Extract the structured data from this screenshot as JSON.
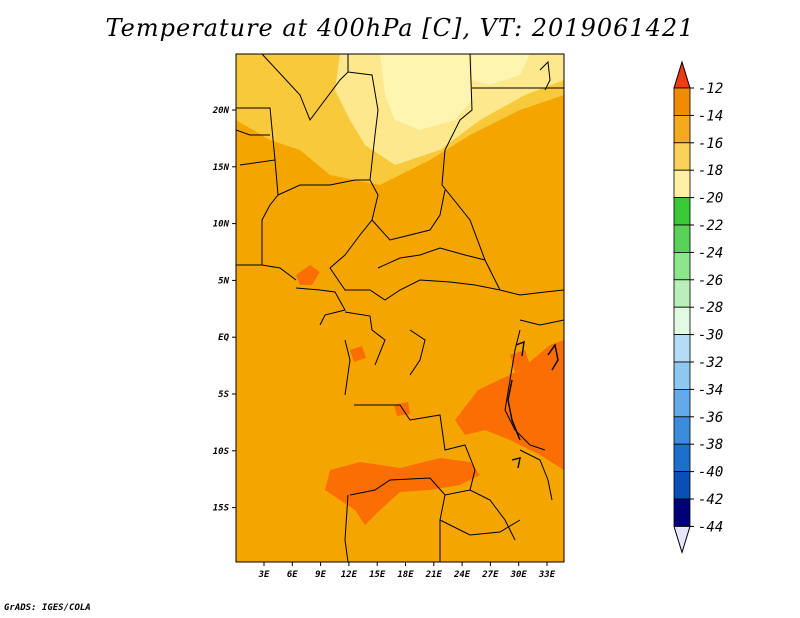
{
  "title": "Temperature at 400hPa [C], VT: 2019061421",
  "footer": "GrADS: IGES/COLA",
  "map": {
    "lon_labels": [
      "3E",
      "6E",
      "9E",
      "12E",
      "15E",
      "18E",
      "21E",
      "24E",
      "27E",
      "30E",
      "33E"
    ],
    "lat_labels": [
      "20N",
      "15N",
      "10N",
      "5N",
      "EQ",
      "5S",
      "10S",
      "15S"
    ],
    "colors": {
      "base": "#f5a500",
      "warm": "#fa6e04",
      "light": "#f9c93c",
      "lighter": "#fde88e",
      "palest": "#fff4b0",
      "border": "#000000"
    }
  },
  "colorbar": {
    "labels": [
      "-12",
      "-14",
      "-16",
      "-18",
      "-20",
      "-22",
      "-24",
      "-26",
      "-28",
      "-30",
      "-32",
      "-34",
      "-36",
      "-38",
      "-40",
      "-42",
      "-44"
    ],
    "colors": [
      "#f05a14",
      "#f08c00",
      "#f5aa1e",
      "#fad25a",
      "#fff0a8",
      "#38c838",
      "#5ad25a",
      "#8ce68c",
      "#b9f0b9",
      "#e1fae1",
      "#b4dcf5",
      "#8cc8f0",
      "#64aae6",
      "#3c8cdc",
      "#1e6ecd",
      "#0a50b4",
      "#000078"
    ],
    "top_arrow_color": "#f03c14",
    "bottom_arrow_color": "#e6e6ff"
  }
}
